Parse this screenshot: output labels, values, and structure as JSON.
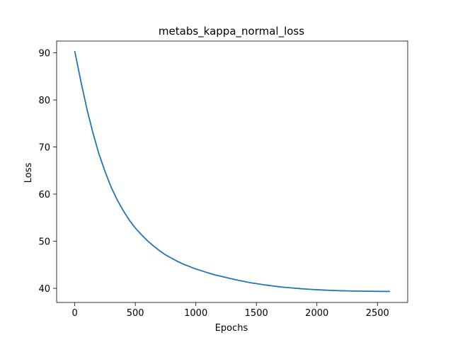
{
  "chart_data": {
    "type": "line",
    "title": "metabs_kappa_normal_loss",
    "xlabel": "Epochs",
    "ylabel": "Loss",
    "xlim": [
      -150,
      2750
    ],
    "ylim": [
      37,
      92.5
    ],
    "x_ticks": [
      0,
      500,
      1000,
      1500,
      2000,
      2500
    ],
    "y_ticks": [
      40,
      50,
      60,
      70,
      80,
      90
    ],
    "grid": false,
    "series": [
      {
        "color": "#1f77b4",
        "x": [
          0,
          50,
          100,
          150,
          200,
          250,
          300,
          350,
          400,
          450,
          500,
          550,
          600,
          650,
          700,
          750,
          800,
          850,
          900,
          950,
          1000,
          1050,
          1100,
          1150,
          1200,
          1250,
          1300,
          1350,
          1400,
          1450,
          1500,
          1550,
          1600,
          1650,
          1700,
          1750,
          1800,
          1850,
          1900,
          1950,
          2000,
          2050,
          2100,
          2150,
          2200,
          2250,
          2300,
          2350,
          2400,
          2450,
          2500,
          2550,
          2600
        ],
        "values": [
          90.3,
          84.0,
          78.1,
          73.0,
          68.5,
          64.8,
          61.5,
          58.8,
          56.5,
          54.5,
          52.8,
          51.4,
          50.1,
          49.0,
          48.0,
          47.1,
          46.4,
          45.7,
          45.1,
          44.6,
          44.1,
          43.7,
          43.3,
          42.9,
          42.6,
          42.3,
          42.0,
          41.7,
          41.45,
          41.2,
          41.0,
          40.8,
          40.62,
          40.46,
          40.3,
          40.18,
          40.06,
          39.96,
          39.86,
          39.78,
          39.7,
          39.64,
          39.58,
          39.53,
          39.49,
          39.46,
          39.43,
          39.41,
          39.39,
          39.38,
          39.36,
          39.35,
          39.34
        ]
      }
    ]
  }
}
